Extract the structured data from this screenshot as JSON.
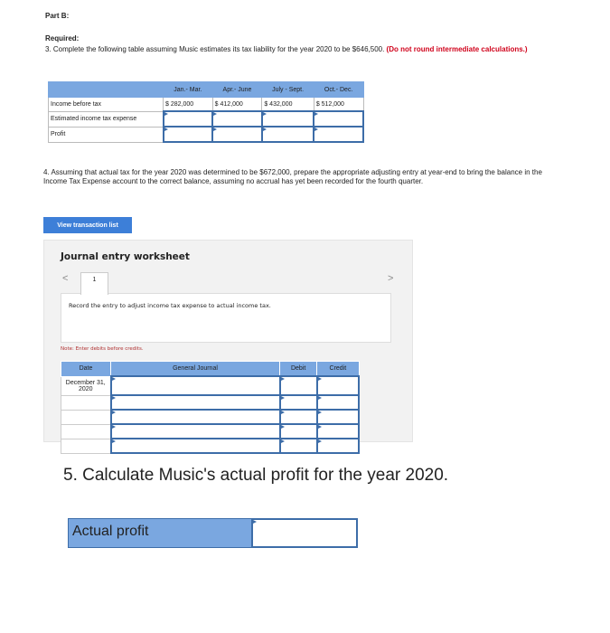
{
  "part": "Part B:",
  "required": "Required:",
  "q3": {
    "text": "3. Complete the following table assuming Music estimates its tax liability for the year 2020 to be $646,500.",
    "note": "(Do not round intermediate calculations.)",
    "headers": [
      "",
      "Jan.- Mar.",
      "Apr.- June",
      "July - Sept.",
      "Oct.- Dec."
    ],
    "rows": [
      {
        "label": "Income before tax",
        "values": [
          "$  282,000",
          "$  412,000",
          "$  432,000",
          "$  512,000"
        ]
      },
      {
        "label": "Estimated income tax expense",
        "values": [
          "",
          "",
          "",
          ""
        ]
      },
      {
        "label": "Profit",
        "values": [
          "",
          "",
          "",
          ""
        ]
      }
    ]
  },
  "q4": {
    "text": "4. Assuming that actual tax for the year 2020 was determined to be $672,000, prepare the appropriate adjusting entry at year-end to bring the balance in the Income Tax Expense account to the correct balance, assuming no accrual has yet been recorded for the fourth quarter."
  },
  "view_button": "View transaction list",
  "worksheet": {
    "title": "Journal entry worksheet",
    "tab": "1",
    "prev": "<",
    "next": ">",
    "instruction": "Record the entry to adjust income tax expense to actual income tax.",
    "note": "Note: Enter debits before credits.",
    "headers": [
      "Date",
      "General Journal",
      "Debit",
      "Credit"
    ],
    "rows": [
      {
        "date": "December 31, 2020"
      },
      {
        "date": ""
      },
      {
        "date": ""
      },
      {
        "date": ""
      },
      {
        "date": ""
      }
    ]
  },
  "q5": {
    "text": "5. Calculate Music's actual profit for the year 2020.",
    "label": "Actual profit",
    "value": ""
  }
}
